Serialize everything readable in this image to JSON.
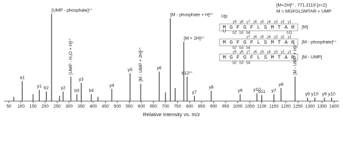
{
  "chart_data": {
    "type": "bar",
    "xlabel": "Relative Intensity vs. m/z",
    "color": "#222222",
    "x": [
      70,
      105,
      150,
      176,
      205,
      227,
      260,
      275,
      307,
      332,
      350,
      392,
      420,
      477,
      553,
      597,
      674,
      700,
      720,
      740,
      776,
      790,
      820,
      890,
      1010,
      1080,
      1100,
      1150,
      1180,
      1238,
      1290,
      1320,
      1360,
      1390
    ],
    "values": [
      5,
      23,
      8,
      13,
      11,
      100,
      6,
      11,
      28,
      8,
      21,
      8,
      5,
      14,
      32,
      20,
      34,
      10,
      95,
      15,
      68,
      28,
      6,
      12,
      8,
      9,
      7,
      8,
      15,
      28,
      4,
      4,
      4,
      4
    ],
    "peak_labels": [
      null,
      "a1",
      null,
      "y1",
      "b2",
      "[UMP - phosphate]¹⁺",
      null,
      "y2",
      "[UMP - H₂O + H]¹⁺",
      "b3",
      "y3",
      "b4",
      null,
      "y4",
      "y5",
      "[M - UMP + 2H]²⁺",
      "y6",
      null,
      "[M - phosphate + H]²⁺",
      null,
      "[M + 2H]²⁺",
      "b12²⁺",
      "y7",
      "y8",
      "y9",
      "y10",
      "b11",
      "y7",
      "y8",
      "[M - UMP + H]¹⁺",
      "y9",
      "y10",
      "y9",
      "y10"
    ],
    "peak_label_colors": [
      null,
      "#222222",
      null,
      "#d9261c",
      "#3b3bb3",
      "#222222",
      null,
      "#d9261c",
      "#222222",
      "#3b3bb3",
      "#d9261c",
      "#3b3bb3",
      null,
      "#d9261c",
      "#d9261c",
      "#5aa02c",
      "#d9261c",
      null,
      "#f08c00",
      null,
      "#222222",
      "#3b3bb3",
      "#5aa02c",
      "#5aa02c",
      "#5aa02c",
      "#5aa02c",
      "#3b3bb3",
      "#d9261c",
      "#d9261c",
      "#5aa02c",
      "#f08c00",
      "#f08c00",
      "#d9261c",
      "#d9261c"
    ],
    "xlim": [
      30,
      1420
    ],
    "xticks": [
      50,
      100,
      150,
      200,
      250,
      300,
      350,
      400,
      450,
      500,
      550,
      600,
      650,
      700,
      750,
      800,
      850,
      900,
      950,
      1000,
      1050,
      1100,
      1150,
      1200,
      1250,
      1300,
      1350,
      1400
    ],
    "ylim": [
      0,
      105
    ]
  },
  "inset": {
    "header": [
      "[M+2H]²⁺, 771.3119 [z=2]",
      "M = MGFGLSMTAR + UMP"
    ],
    "rows": [
      {
        "mod": "U|p",
        "y_ions": [
          "y9",
          "y8",
          "y7",
          "y6",
          "y5",
          "y4",
          "y3",
          "y2",
          "y1"
        ],
        "residues": [
          "M",
          "G",
          "F",
          "G",
          "F",
          "L",
          "S",
          "M",
          "T",
          "A",
          "R"
        ],
        "b_ions": [
          "b2",
          "b3",
          "b4"
        ],
        "b_end": "b11",
        "label": "[M]",
        "color": "#222222"
      },
      {
        "mod": "U",
        "y_ions": [
          "y7",
          "y6",
          "y5",
          "y4",
          "y3",
          "y2",
          "y1"
        ],
        "residues": [
          "M",
          "G",
          "F",
          "G",
          "F",
          "L",
          "S",
          "M",
          "T",
          "A",
          "R"
        ],
        "b_ions": [
          "b2",
          "b3",
          "b4"
        ],
        "b_end": null,
        "label": "[M - phosphate]¹⁺",
        "color": "#f08c00"
      },
      {
        "mod": null,
        "y_ions": [
          "y9",
          "y8",
          "y7",
          "y6",
          "y5",
          "y4",
          "y3",
          "y2",
          "y1"
        ],
        "residues": [
          "M",
          "G",
          "F",
          "G",
          "F",
          "L",
          "S",
          "M",
          "T",
          "A",
          "R"
        ],
        "b_ions": [
          "b2",
          "b3",
          "b4"
        ],
        "b_end": null,
        "label": "[M - UMP]",
        "color": "#5aa02c"
      }
    ]
  }
}
